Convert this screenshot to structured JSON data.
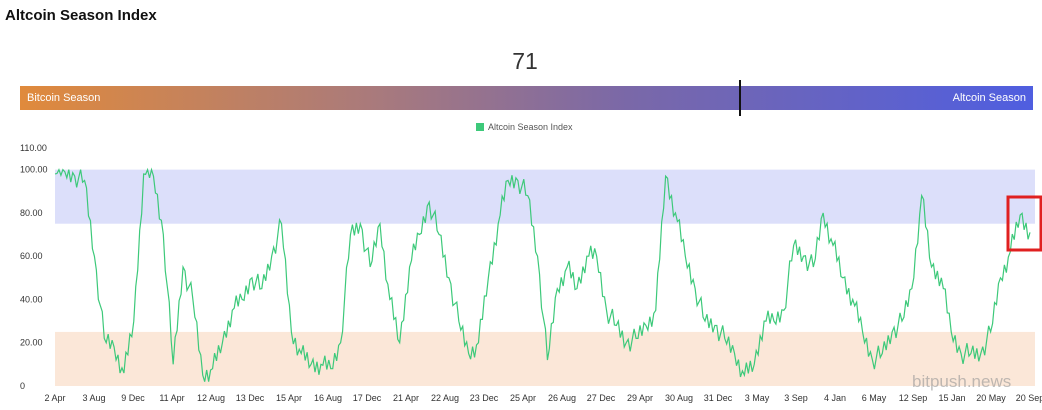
{
  "title": "Altcoin Season Index",
  "current_value": "71",
  "bar": {
    "left_label": "Bitcoin Season",
    "right_label": "Altcoin Season",
    "marker_value": 71
  },
  "watermark": "bitpush.news",
  "colors": {
    "line": "#3dc97a",
    "altcoin_band": "#dcdffa",
    "bitcoin_band": "#fbe7d8",
    "highlight": "#e02020"
  },
  "chart_data": {
    "type": "line",
    "legend": [
      "Altcoin Season Index"
    ],
    "legend_position": "top-center",
    "ylim": [
      0,
      110
    ],
    "y_ticks": [
      "0",
      "20.00",
      "40.00",
      "60.00",
      "80.00",
      "100.00",
      "110.00"
    ],
    "y_tick_values": [
      0,
      20,
      40,
      60,
      80,
      100,
      110
    ],
    "x_ticks": [
      "2 Apr",
      "3 Aug",
      "9 Dec",
      "11 Apr",
      "12 Aug",
      "13 Dec",
      "15 Apr",
      "16 Aug",
      "17 Dec",
      "21 Apr",
      "22 Aug",
      "23 Dec",
      "25 Apr",
      "26 Aug",
      "27 Dec",
      "29 Apr",
      "30 Aug",
      "31 Dec",
      "3 May",
      "3 Sep",
      "4 Jan",
      "6 May",
      "12 Sep",
      "15 Jan",
      "20 May",
      "20 Sep"
    ],
    "bands": [
      {
        "from": 75,
        "to": 100,
        "label": "altcoin"
      },
      {
        "from": 0,
        "to": 25,
        "label": "bitcoin"
      }
    ],
    "series": [
      {
        "name": "Altcoin Season Index",
        "values": [
          98,
          99,
          97,
          95,
          60,
          22,
          18,
          6,
          30,
          98,
          97,
          70,
          10,
          55,
          40,
          5,
          8,
          20,
          35,
          40,
          50,
          45,
          60,
          75,
          25,
          15,
          10,
          10,
          8,
          20,
          70,
          75,
          55,
          75,
          40,
          20,
          55,
          70,
          85,
          70,
          50,
          30,
          15,
          20,
          50,
          75,
          95,
          95,
          88,
          60,
          12,
          45,
          55,
          45,
          60,
          60,
          35,
          28,
          20,
          22,
          28,
          35,
          97,
          80,
          60,
          45,
          30,
          28,
          22,
          15,
          5,
          10,
          30,
          30,
          35,
          65,
          60,
          55,
          80,
          65,
          50,
          40,
          25,
          12,
          15,
          25,
          30,
          45,
          88,
          55,
          50,
          25,
          15,
          15,
          15,
          25,
          50,
          62,
          79,
          71
        ]
      }
    ]
  }
}
